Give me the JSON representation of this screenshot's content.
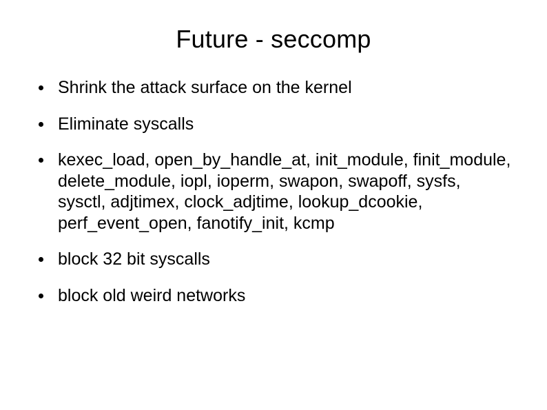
{
  "slide": {
    "title": "Future - seccomp",
    "bullets": [
      "Shrink the attack surface on the kernel",
      "Eliminate syscalls",
      "kexec_load, open_by_handle_at, init_module, finit_module, delete_module, iopl, ioperm, swapon, swapoff, sysfs, sysctl, adjtimex, clock_adjtime, lookup_dcookie, perf_event_open, fanotify_init, kcmp",
      "block 32 bit syscalls",
      "block old weird networks"
    ],
    "style": {
      "title_fontsize": 36,
      "body_fontsize": 25,
      "bullet_color": "#000000",
      "text_color": "#000000",
      "background_color": "#ffffff",
      "font_family": "Arial"
    }
  }
}
